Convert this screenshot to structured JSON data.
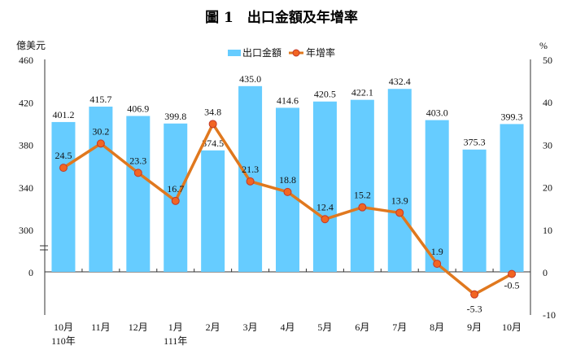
{
  "chart_data": {
    "type": "bar+line",
    "title": "圖 1　出口金額及年增率",
    "left_axis": {
      "label": "億美元",
      "ticks": [
        "460",
        "420",
        "380",
        "340",
        "300",
        "0"
      ],
      "ylim": [
        0,
        460
      ],
      "break_between": [
        0,
        300
      ]
    },
    "right_axis": {
      "label": "%",
      "ticks": [
        "50",
        "40",
        "30",
        "20",
        "10",
        "0",
        "-10"
      ],
      "ylim": [
        -10,
        50
      ]
    },
    "legend": {
      "position": "top-center",
      "bar_label": "出口金額",
      "line_label": "年增率"
    },
    "categories": [
      "10月",
      "11月",
      "12月",
      "1月",
      "2月",
      "3月",
      "4月",
      "5月",
      "6月",
      "7月",
      "8月",
      "9月",
      "10月"
    ],
    "year_labels": [
      "110年",
      "",
      "",
      "111年",
      "",
      "",
      "",
      "",
      "",
      "",
      "",
      "",
      ""
    ],
    "series": [
      {
        "name": "出口金額",
        "type": "bar",
        "axis": "left",
        "values": [
          401.2,
          415.7,
          406.9,
          399.8,
          374.5,
          435.0,
          414.6,
          420.5,
          422.1,
          432.4,
          403.0,
          375.3,
          399.3
        ],
        "labels": [
          "401.2",
          "415.7",
          "406.9",
          "399.8",
          "374.5",
          "435.0",
          "414.6",
          "420.5",
          "422.1",
          "432.4",
          "403.0",
          "375.3",
          "399.3"
        ]
      },
      {
        "name": "年增率",
        "type": "line",
        "axis": "right",
        "values": [
          24.5,
          30.2,
          23.3,
          16.7,
          34.8,
          21.3,
          18.8,
          12.4,
          15.2,
          13.9,
          1.9,
          -5.3,
          -0.5
        ],
        "labels": [
          "24.5",
          "30.2",
          "23.3",
          "16.7",
          "34.8",
          "21.3",
          "18.8",
          "12.4",
          "15.2",
          "13.9",
          "1.9",
          "-5.3",
          "-0.5"
        ]
      }
    ],
    "colors": {
      "bar": "#66CCFF",
      "line": "#E0781E",
      "marker": "#F26522"
    }
  }
}
